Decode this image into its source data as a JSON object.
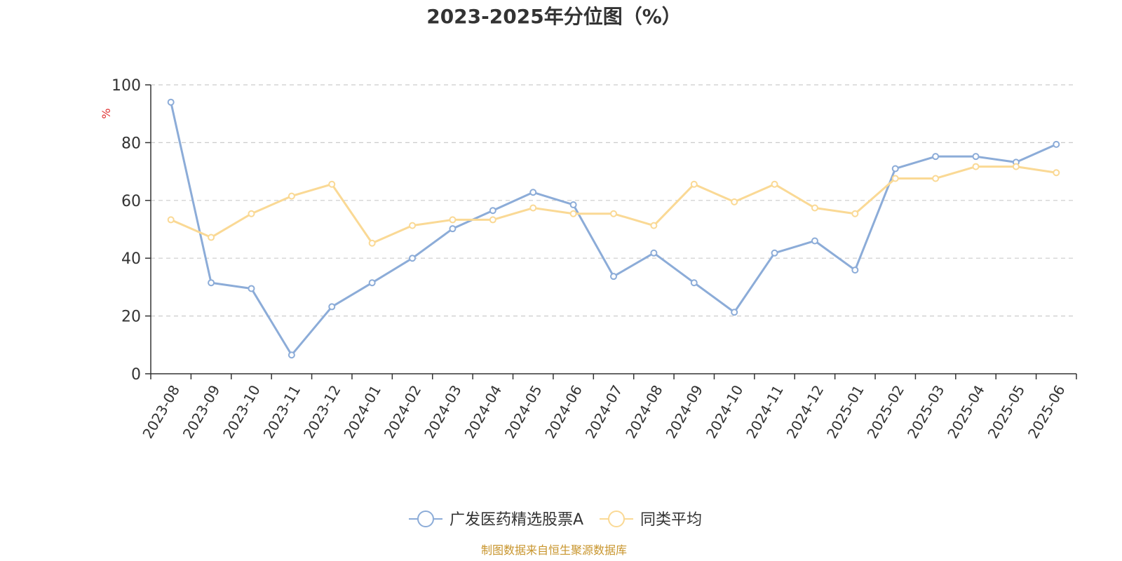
{
  "chart_data": {
    "type": "line",
    "title": "2023-2025年分位图（%）",
    "ylabel": "%",
    "ylim": [
      0,
      100
    ],
    "yticks": [
      0,
      20,
      40,
      60,
      80,
      100
    ],
    "grid": true,
    "legend_position": "bottom",
    "categories": [
      "2023-08",
      "2023-09",
      "2023-10",
      "2023-11",
      "2023-12",
      "2024-01",
      "2024-02",
      "2024-03",
      "2024-04",
      "2024-05",
      "2024-06",
      "2024-07",
      "2024-08",
      "2024-09",
      "2024-10",
      "2024-11",
      "2024-12",
      "2025-01",
      "2025-02",
      "2025-03",
      "2025-04",
      "2025-05",
      "2025-06"
    ],
    "series": [
      {
        "name": "广发医药精选股票A",
        "color": "#8cacd8",
        "values": [
          94,
          31.5,
          29.5,
          6.5,
          23.2,
          31.5,
          40,
          50.2,
          56.5,
          62.8,
          58.5,
          33.7,
          41.8,
          31.5,
          21.3,
          41.8,
          46,
          35.9,
          71,
          75.2,
          75.2,
          73.2,
          79.4
        ]
      },
      {
        "name": "同类平均",
        "color": "#fad995",
        "values": [
          53.3,
          47.2,
          55.4,
          61.5,
          65.6,
          45.2,
          51.3,
          53.3,
          53.3,
          57.4,
          55.4,
          55.4,
          51.3,
          65.6,
          59.5,
          65.6,
          57.4,
          55.4,
          67.6,
          67.6,
          71.7,
          71.7,
          69.6
        ]
      }
    ]
  },
  "source_text": "制图数据来自恒生聚源数据库",
  "colors": {
    "unit_label": "#e03030",
    "source_text": "#c8952d",
    "axis": "#333333",
    "grid": "#cccccc"
  }
}
